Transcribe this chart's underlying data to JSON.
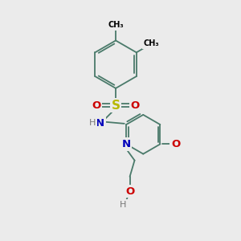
{
  "bg_color": "#ebebeb",
  "bond_color": "#4a7a6a",
  "bond_width": 1.3,
  "atom_colors": {
    "S": "#b8b800",
    "O": "#cc0000",
    "N": "#0000bb",
    "gray": "#777777"
  },
  "figsize": [
    3.0,
    3.0
  ],
  "dpi": 100,
  "xlim": [
    0,
    10
  ],
  "ylim": [
    0,
    10
  ]
}
